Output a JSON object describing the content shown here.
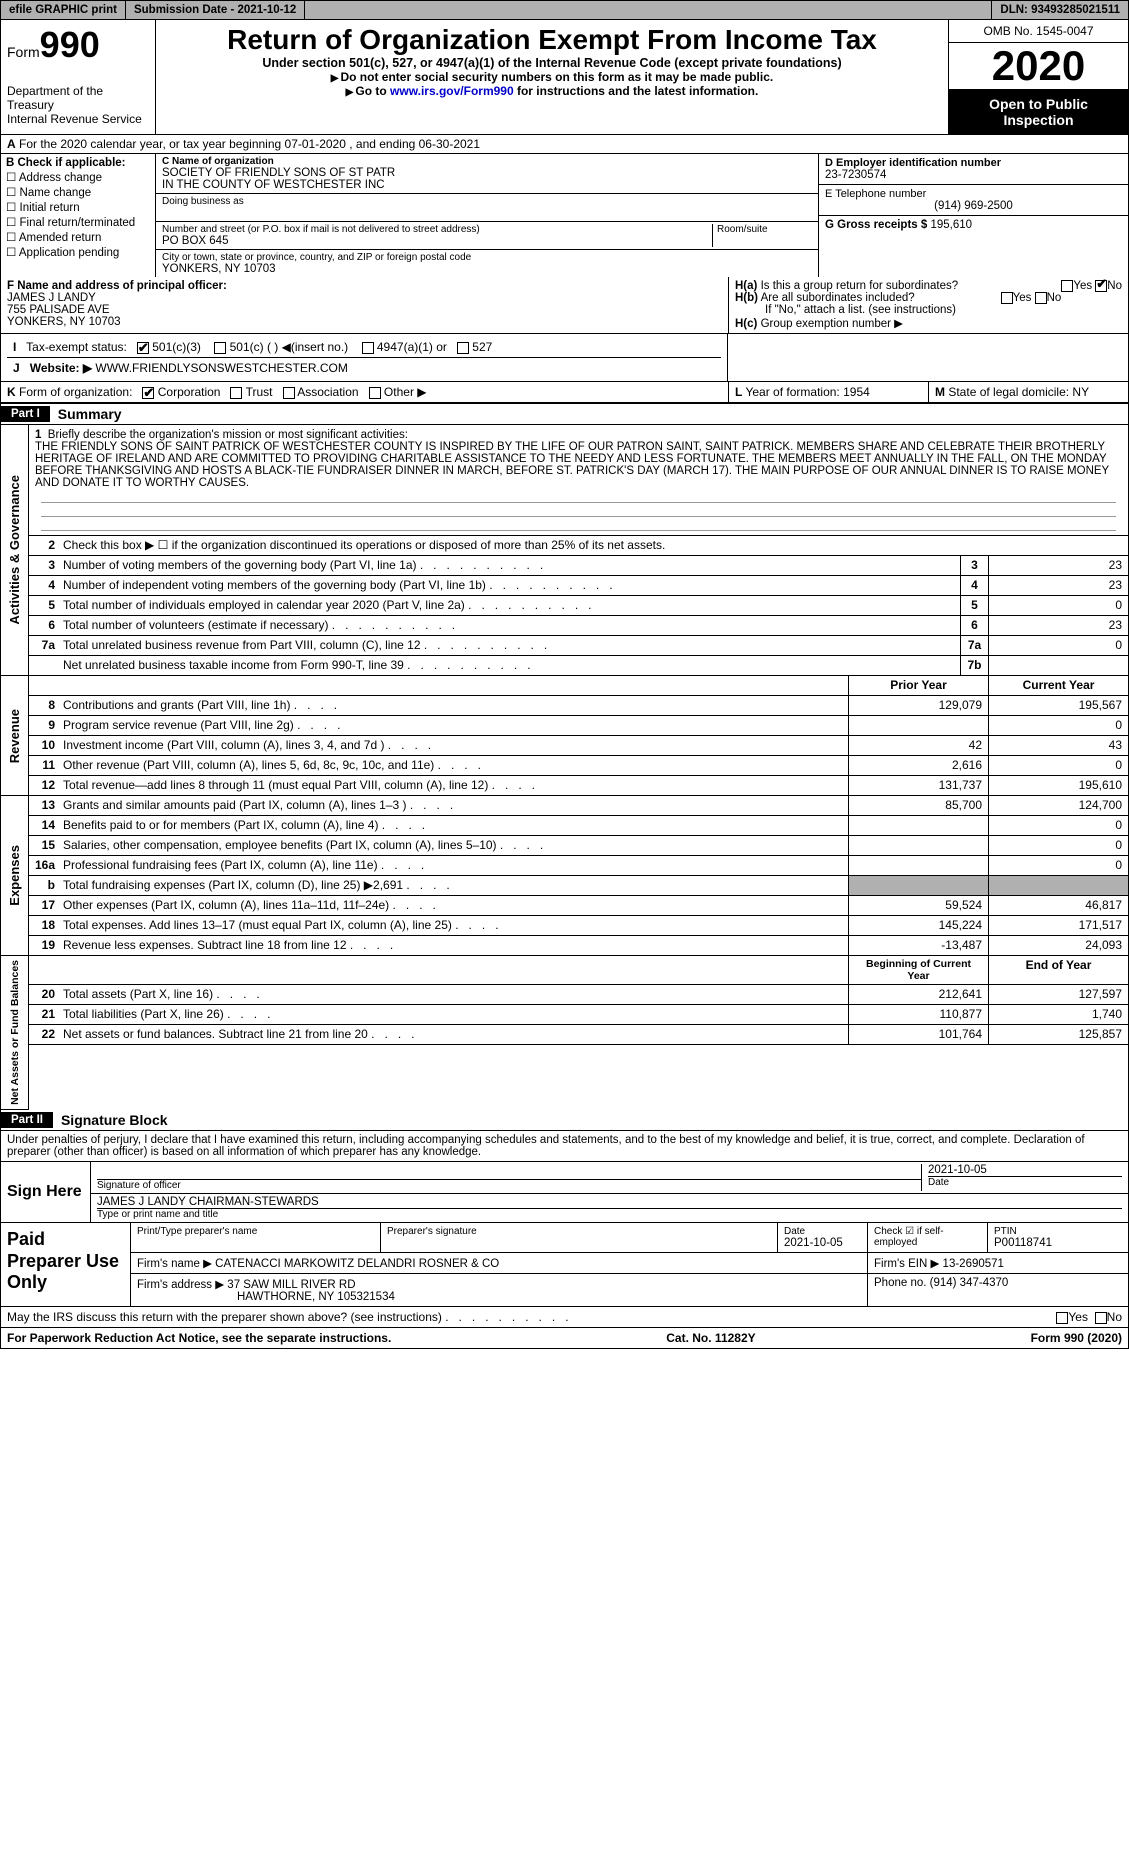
{
  "topbar": {
    "efile": "efile GRAPHIC print",
    "submission": "Submission Date - 2021-10-12",
    "dln": "DLN: 93493285021511"
  },
  "header": {
    "form_label": "Form",
    "form_num": "990",
    "dept": "Department of the Treasury",
    "irs": "Internal Revenue Service",
    "title": "Return of Organization Exempt From Income Tax",
    "subtitle": "Under section 501(c), 527, or 4947(a)(1) of the Internal Revenue Code (except private foundations)",
    "note1": "Do not enter social security numbers on this form as it may be made public.",
    "note2_pre": "Go to ",
    "note2_link": "www.irs.gov/Form990",
    "note2_post": " for instructions and the latest information.",
    "omb": "OMB No. 1545-0047",
    "year": "2020",
    "inspect": "Open to Public Inspection"
  },
  "row_a": "For the 2020 calendar year, or tax year beginning 07-01-2020   , and ending 06-30-2021",
  "section_b": {
    "label": "B Check if applicable:",
    "opts": [
      "Address change",
      "Name change",
      "Initial return",
      "Final return/terminated",
      "Amended return",
      "Application pending"
    ]
  },
  "section_c": {
    "label": "C Name of organization",
    "name": "SOCIETY OF FRIENDLY SONS OF ST PATR",
    "name2": "IN THE COUNTY OF WESTCHESTER INC",
    "dba_label": "Doing business as",
    "addr_label": "Number and street (or P.O. box if mail is not delivered to street address)",
    "room_label": "Room/suite",
    "addr": "PO BOX 645",
    "city_label": "City or town, state or province, country, and ZIP or foreign postal code",
    "city": "YONKERS, NY  10703"
  },
  "section_d": {
    "label": "D Employer identification number",
    "val": "23-7230574"
  },
  "section_e": {
    "label": "E Telephone number",
    "val": "(914) 969-2500"
  },
  "section_g": {
    "label": "G Gross receipts $",
    "val": "195,610"
  },
  "section_f": {
    "label": "F  Name and address of principal officer:",
    "name": "JAMES J LANDY",
    "addr": "755 PALISADE AVE",
    "city": "YONKERS, NY  10703"
  },
  "section_h": {
    "ha": "Is this a group return for subordinates?",
    "hb": "Are all subordinates included?",
    "hb_note": "If \"No,\" attach a list. (see instructions)",
    "hc": "Group exemption number ▶"
  },
  "row_i": {
    "label": "Tax-exempt status:",
    "opts": [
      "501(c)(3)",
      "501(c) (  ) ◀(insert no.)",
      "4947(a)(1) or",
      "527"
    ]
  },
  "row_j": {
    "label": "Website: ▶",
    "val": "WWW.FRIENDLYSONSWESTCHESTER.COM"
  },
  "row_k": {
    "label": "Form of organization:",
    "opts": [
      "Corporation",
      "Trust",
      "Association",
      "Other ▶"
    ]
  },
  "row_l": {
    "label": "Year of formation:",
    "val": "1954"
  },
  "row_m": {
    "label": "State of legal domicile:",
    "val": "NY"
  },
  "part1": {
    "label": "Part I",
    "title": "Summary",
    "side_ag": "Activities & Governance",
    "side_rev": "Revenue",
    "side_exp": "Expenses",
    "side_net": "Net Assets or Fund Balances",
    "l1_label": "Briefly describe the organization's mission or most significant activities:",
    "l1_text": "THE FRIENDLY SONS OF SAINT PATRICK OF WESTCHESTER COUNTY IS INSPIRED BY THE LIFE OF OUR PATRON SAINT, SAINT PATRICK. MEMBERS SHARE AND CELEBRATE THEIR BROTHERLY HERITAGE OF IRELAND AND ARE COMMITTED TO PROVIDING CHARITABLE ASSISTANCE TO THE NEEDY AND LESS FORTUNATE. THE MEMBERS MEET ANNUALLY IN THE FALL, ON THE MONDAY BEFORE THANKSGIVING AND HOSTS A BLACK-TIE FUNDRAISER DINNER IN MARCH, BEFORE ST. PATRICK'S DAY (MARCH 17). THE MAIN PURPOSE OF OUR ANNUAL DINNER IS TO RAISE MONEY AND DONATE IT TO WORTHY CAUSES.",
    "l2": "Check this box ▶ ☐  if the organization discontinued its operations or disposed of more than 25% of its net assets.",
    "lines_num": [
      {
        "n": "3",
        "d": "Number of voting members of the governing body (Part VI, line 1a)",
        "b": "3",
        "v": "23"
      },
      {
        "n": "4",
        "d": "Number of independent voting members of the governing body (Part VI, line 1b)",
        "b": "4",
        "v": "23"
      },
      {
        "n": "5",
        "d": "Total number of individuals employed in calendar year 2020 (Part V, line 2a)",
        "b": "5",
        "v": "0"
      },
      {
        "n": "6",
        "d": "Total number of volunteers (estimate if necessary)",
        "b": "6",
        "v": "23"
      },
      {
        "n": "7a",
        "d": "Total unrelated business revenue from Part VIII, column (C), line 12",
        "b": "7a",
        "v": "0"
      },
      {
        "n": "",
        "d": "Net unrelated business taxable income from Form 990-T, line 39",
        "b": "7b",
        "v": ""
      }
    ],
    "hdr_prior": "Prior Year",
    "hdr_curr": "Current Year",
    "rev": [
      {
        "n": "8",
        "d": "Contributions and grants (Part VIII, line 1h)",
        "p": "129,079",
        "c": "195,567"
      },
      {
        "n": "9",
        "d": "Program service revenue (Part VIII, line 2g)",
        "p": "",
        "c": "0"
      },
      {
        "n": "10",
        "d": "Investment income (Part VIII, column (A), lines 3, 4, and 7d )",
        "p": "42",
        "c": "43"
      },
      {
        "n": "11",
        "d": "Other revenue (Part VIII, column (A), lines 5, 6d, 8c, 9c, 10c, and 11e)",
        "p": "2,616",
        "c": "0"
      },
      {
        "n": "12",
        "d": "Total revenue—add lines 8 through 11 (must equal Part VIII, column (A), line 12)",
        "p": "131,737",
        "c": "195,610"
      }
    ],
    "exp": [
      {
        "n": "13",
        "d": "Grants and similar amounts paid (Part IX, column (A), lines 1–3 )",
        "p": "85,700",
        "c": "124,700"
      },
      {
        "n": "14",
        "d": "Benefits paid to or for members (Part IX, column (A), line 4)",
        "p": "",
        "c": "0"
      },
      {
        "n": "15",
        "d": "Salaries, other compensation, employee benefits (Part IX, column (A), lines 5–10)",
        "p": "",
        "c": "0"
      },
      {
        "n": "16a",
        "d": "Professional fundraising fees (Part IX, column (A), line 11e)",
        "p": "",
        "c": "0"
      },
      {
        "n": "b",
        "d": "Total fundraising expenses (Part IX, column (D), line 25) ▶2,691",
        "p": "SHADE",
        "c": "SHADE"
      },
      {
        "n": "17",
        "d": "Other expenses (Part IX, column (A), lines 11a–11d, 11f–24e)",
        "p": "59,524",
        "c": "46,817"
      },
      {
        "n": "18",
        "d": "Total expenses. Add lines 13–17 (must equal Part IX, column (A), line 25)",
        "p": "145,224",
        "c": "171,517"
      },
      {
        "n": "19",
        "d": "Revenue less expenses. Subtract line 18 from line 12",
        "p": "-13,487",
        "c": "24,093"
      }
    ],
    "hdr_beg": "Beginning of Current Year",
    "hdr_end": "End of Year",
    "net": [
      {
        "n": "20",
        "d": "Total assets (Part X, line 16)",
        "p": "212,641",
        "c": "127,597"
      },
      {
        "n": "21",
        "d": "Total liabilities (Part X, line 26)",
        "p": "110,877",
        "c": "1,740"
      },
      {
        "n": "22",
        "d": "Net assets or fund balances. Subtract line 21 from line 20",
        "p": "101,764",
        "c": "125,857"
      }
    ]
  },
  "part2": {
    "label": "Part II",
    "title": "Signature Block",
    "decl": "Under penalties of perjury, I declare that I have examined this return, including accompanying schedules and statements, and to the best of my knowledge and belief, it is true, correct, and complete. Declaration of preparer (other than officer) is based on all information of which preparer has any knowledge.",
    "sign_here": "Sign Here",
    "sig_officer": "Signature of officer",
    "sig_date": "2021-10-05",
    "date_label": "Date",
    "officer_name": "JAMES J LANDY  CHAIRMAN-STEWARDS",
    "type_name": "Type or print name and title",
    "paid": "Paid Preparer Use Only",
    "prep_name_label": "Print/Type preparer's name",
    "prep_sig_label": "Preparer's signature",
    "prep_date": "2021-10-05",
    "check_se": "Check ☑ if self-employed",
    "ptin_label": "PTIN",
    "ptin": "P00118741",
    "firm_name_label": "Firm's name    ▶",
    "firm_name": "CATENACCI MARKOWITZ DELANDRI ROSNER & CO",
    "firm_ein_label": "Firm's EIN ▶",
    "firm_ein": "13-2690571",
    "firm_addr_label": "Firm's address ▶",
    "firm_addr": "37 SAW MILL RIVER RD",
    "firm_city": "HAWTHORNE, NY  105321534",
    "phone_label": "Phone no.",
    "phone": "(914) 347-4370",
    "discuss": "May the IRS discuss this return with the preparer shown above? (see instructions)"
  },
  "footer": {
    "paperwork": "For Paperwork Reduction Act Notice, see the separate instructions.",
    "cat": "Cat. No. 11282Y",
    "form": "Form 990 (2020)"
  }
}
